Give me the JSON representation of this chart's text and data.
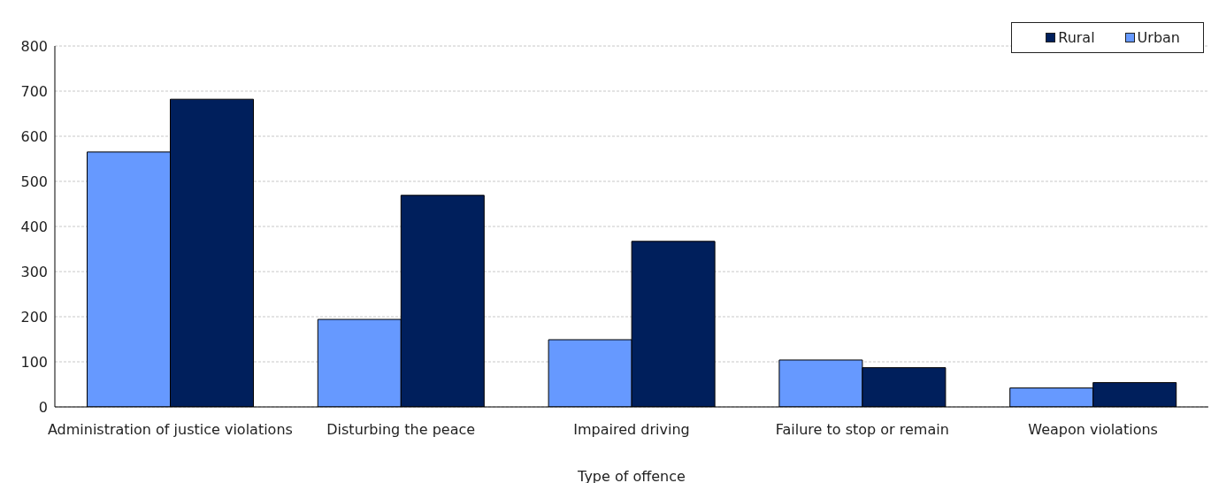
{
  "chart_data": {
    "type": "bar",
    "xlabel": "Type of offence",
    "categories": [
      "Administration of justice violations",
      "Disturbing the peace",
      "Impaired driving",
      "Failure to stop or remain",
      "Weapon violations"
    ],
    "series": [
      {
        "name": "Urban",
        "color": "#6699ff",
        "values": [
          565,
          194,
          149,
          104,
          42
        ]
      },
      {
        "name": "Rural",
        "color": "#001f5c",
        "values": [
          682,
          469,
          367,
          87,
          54
        ]
      }
    ],
    "ylim": [
      0,
      800
    ],
    "yticks": [
      0,
      100,
      200,
      300,
      400,
      500,
      600,
      700,
      800
    ],
    "grid": "y",
    "legend": "top right"
  }
}
